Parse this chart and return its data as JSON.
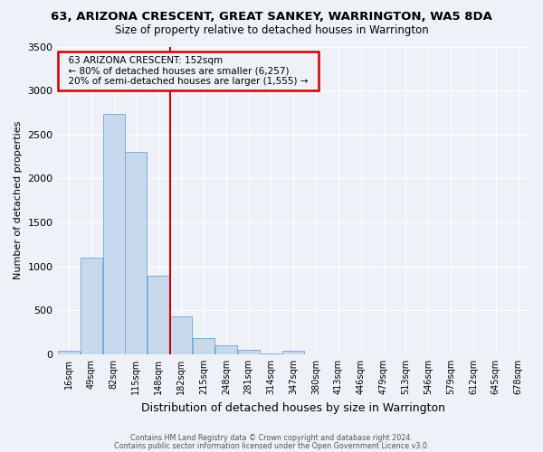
{
  "title": "63, ARIZONA CRESCENT, GREAT SANKEY, WARRINGTON, WA5 8DA",
  "subtitle": "Size of property relative to detached houses in Warrington",
  "xlabel": "Distribution of detached houses by size in Warrington",
  "ylabel": "Number of detached properties",
  "bin_labels": [
    "16sqm",
    "49sqm",
    "82sqm",
    "115sqm",
    "148sqm",
    "182sqm",
    "215sqm",
    "248sqm",
    "281sqm",
    "314sqm",
    "347sqm",
    "380sqm",
    "413sqm",
    "446sqm",
    "479sqm",
    "513sqm",
    "546sqm",
    "579sqm",
    "612sqm",
    "645sqm",
    "678sqm"
  ],
  "bar_values": [
    45,
    1100,
    2730,
    2300,
    890,
    430,
    185,
    100,
    50,
    10,
    40,
    0,
    0,
    0,
    0,
    0,
    0,
    0,
    0,
    0,
    0
  ],
  "bar_color": "#c8d9ee",
  "bar_edge_color": "#7aaed6",
  "vline_color": "#cc0000",
  "annotation_title": "63 ARIZONA CRESCENT: 152sqm",
  "annotation_line1": "← 80% of detached houses are smaller (6,257)",
  "annotation_line2": "20% of semi-detached houses are larger (1,555) →",
  "annotation_box_color": "#cc0000",
  "ylim": [
    0,
    3500
  ],
  "yticks": [
    0,
    500,
    1000,
    1500,
    2000,
    2500,
    3000,
    3500
  ],
  "footer1": "Contains HM Land Registry data © Crown copyright and database right 2024.",
  "footer2": "Contains public sector information licensed under the Open Government Licence v3.0.",
  "bg_color": "#eef2f8"
}
